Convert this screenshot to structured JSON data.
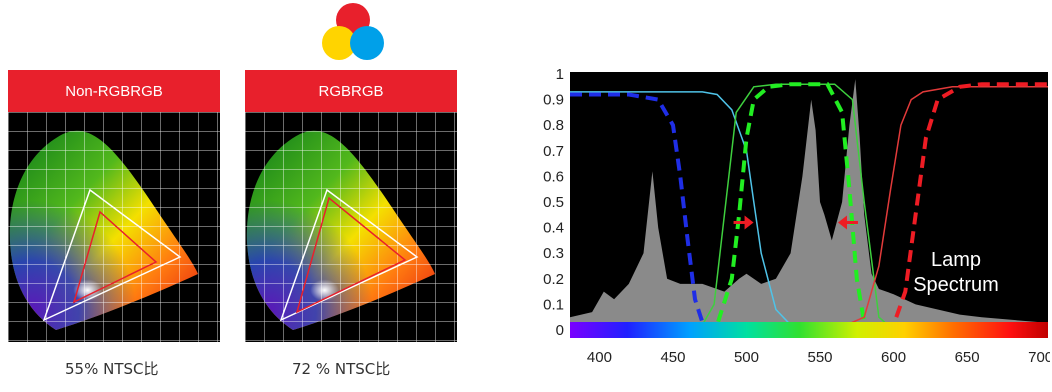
{
  "panels": [
    {
      "header": "Non-RGBRGB",
      "caption": "55% NTSC比",
      "ntsc_percent": 55
    },
    {
      "header": "RGBRGB",
      "caption": "72 % NTSC比",
      "ntsc_percent": 72
    }
  ],
  "colors": {
    "header_red": "#e8202c",
    "venn_red": "#e8202c",
    "venn_yellow": "#ffd400",
    "venn_cyan": "#00a0e9"
  },
  "chart_data": {
    "type": "line",
    "title": "",
    "xlabel": "",
    "ylabel": "",
    "xlim": [
      380,
      705
    ],
    "ylim": [
      0,
      1
    ],
    "x_ticks": [
      "400",
      "450",
      "500",
      "550",
      "600",
      "650",
      "700"
    ],
    "y_ticks": [
      "0",
      "0.1",
      "0.2",
      "0.3",
      "0.4",
      "0.5",
      "0.6",
      "0.7",
      "0.8",
      "0.9",
      "1"
    ],
    "annotation": "Lamp Spectrum",
    "series": [
      {
        "style": "area",
        "color": "#8a8a8a",
        "x": [
          380,
          395,
          403,
          410,
          420,
          430,
          436,
          440,
          446,
          455,
          470,
          485,
          495,
          500,
          510,
          520,
          530,
          538,
          544,
          547,
          550,
          553,
          558,
          565,
          570,
          574,
          577,
          580,
          585,
          590,
          600,
          615,
          630,
          645,
          660,
          680,
          700,
          705
        ],
        "y": [
          0.05,
          0.07,
          0.15,
          0.12,
          0.18,
          0.3,
          0.62,
          0.4,
          0.2,
          0.18,
          0.18,
          0.15,
          0.2,
          0.22,
          0.18,
          0.2,
          0.3,
          0.6,
          0.9,
          0.78,
          0.5,
          0.45,
          0.35,
          0.5,
          0.8,
          0.98,
          0.75,
          0.45,
          0.22,
          0.16,
          0.14,
          0.1,
          0.08,
          0.06,
          0.05,
          0.04,
          0.03,
          0.03
        ]
      },
      {
        "style": "solid",
        "color": "#4fc3e8",
        "x": [
          380,
          470,
          480,
          490,
          500,
          505,
          510,
          520,
          530,
          550,
          580,
          600
        ],
        "y": [
          0.93,
          0.93,
          0.92,
          0.86,
          0.7,
          0.5,
          0.3,
          0.08,
          0.02,
          0.01,
          0.0,
          0.0
        ]
      },
      {
        "style": "dashed",
        "color": "#1f2ee6",
        "x": [
          380,
          420,
          440,
          450,
          455,
          460,
          465,
          470,
          480,
          500
        ],
        "y": [
          0.92,
          0.92,
          0.9,
          0.8,
          0.6,
          0.35,
          0.12,
          0.03,
          0.0,
          0.0
        ]
      },
      {
        "style": "solid",
        "color": "#3ecf3e",
        "x": [
          450,
          470,
          478,
          485,
          493,
          505,
          520,
          560,
          572,
          580,
          590,
          600
        ],
        "y": [
          0.0,
          0.02,
          0.1,
          0.45,
          0.85,
          0.95,
          0.96,
          0.96,
          0.9,
          0.5,
          0.05,
          0.0
        ]
      },
      {
        "style": "dashed",
        "color": "#22ee22",
        "x": [
          470,
          480,
          490,
          495,
          500,
          505,
          515,
          530,
          555,
          565,
          570,
          575,
          580,
          590
        ],
        "y": [
          0.0,
          0.02,
          0.2,
          0.45,
          0.75,
          0.9,
          0.95,
          0.96,
          0.96,
          0.85,
          0.55,
          0.2,
          0.03,
          0.0
        ]
      },
      {
        "style": "solid",
        "color": "#e23a3a",
        "x": [
          560,
          580,
          590,
          598,
          605,
          612,
          620,
          640,
          705
        ],
        "y": [
          0.0,
          0.05,
          0.25,
          0.55,
          0.8,
          0.9,
          0.93,
          0.95,
          0.95
        ]
      },
      {
        "style": "dashed",
        "color": "#ee1c24",
        "x": [
          580,
          600,
          608,
          615,
          622,
          630,
          645,
          660,
          705
        ],
        "y": [
          0.0,
          0.02,
          0.15,
          0.45,
          0.75,
          0.9,
          0.95,
          0.96,
          0.96
        ]
      }
    ],
    "arrows": [
      {
        "x": 498,
        "y": 0.42,
        "direction": "right",
        "color": "#ee1c24"
      },
      {
        "x": 569,
        "y": 0.42,
        "direction": "left",
        "color": "#ee1c24"
      }
    ]
  }
}
